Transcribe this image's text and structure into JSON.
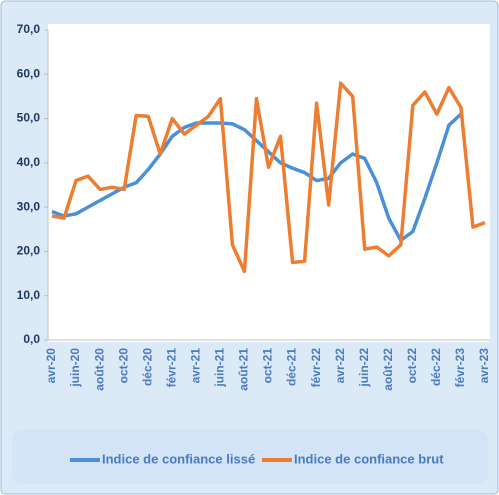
{
  "chart_data": {
    "type": "line",
    "categories": [
      "avr-20",
      null,
      "juin-20",
      null,
      "août-20",
      null,
      "oct-20",
      null,
      "déc-20",
      null,
      "févr-21",
      null,
      "avr-21",
      null,
      "juin-21",
      null,
      "août-21",
      null,
      "oct-21",
      null,
      "déc-21",
      null,
      "févr-22",
      null,
      "avr-22",
      null,
      "juin-22",
      null,
      "août-22",
      null,
      "oct-22",
      null,
      "déc-22",
      null,
      "févr-23",
      null,
      "avr-23"
    ],
    "series": [
      {
        "name": "Indice de confiance lissé",
        "color": "#4a90d9",
        "values": [
          29,
          28,
          28.5,
          30,
          31.5,
          33,
          34.5,
          35.5,
          38.5,
          42,
          46,
          48,
          49,
          49,
          49,
          48.8,
          47.5,
          45,
          42.5,
          40,
          38.8,
          37.8,
          36,
          36.5,
          40,
          42,
          41,
          35.5,
          27.5,
          22.5,
          24.5,
          32,
          40,
          48.5,
          51,
          null,
          null
        ]
      },
      {
        "name": "Indice de confiance brut",
        "color": "#ed7d31",
        "values": [
          28,
          27.5,
          36,
          37,
          34,
          34.5,
          34,
          50.7,
          50.5,
          42,
          50,
          46.5,
          48.5,
          50.5,
          54.5,
          21.5,
          15.5,
          54.5,
          39,
          46,
          17.5,
          17.8,
          53.5,
          30.5,
          58,
          55,
          20.5,
          21,
          19,
          21.5,
          53,
          56,
          51,
          57,
          52.5,
          25.5,
          26.5
        ]
      }
    ],
    "ylim": [
      0,
      70
    ],
    "yticks": [
      {
        "value": 0,
        "label": "0,0"
      },
      {
        "value": 10,
        "label": "10,0"
      },
      {
        "value": 20,
        "label": "20,0"
      },
      {
        "value": 30,
        "label": "30,0"
      },
      {
        "value": 40,
        "label": "40,0"
      },
      {
        "value": 50,
        "label": "50,0"
      },
      {
        "value": 60,
        "label": "60,0"
      },
      {
        "value": 70,
        "label": "70,0"
      }
    ],
    "grid": false,
    "legend": "bottom"
  }
}
